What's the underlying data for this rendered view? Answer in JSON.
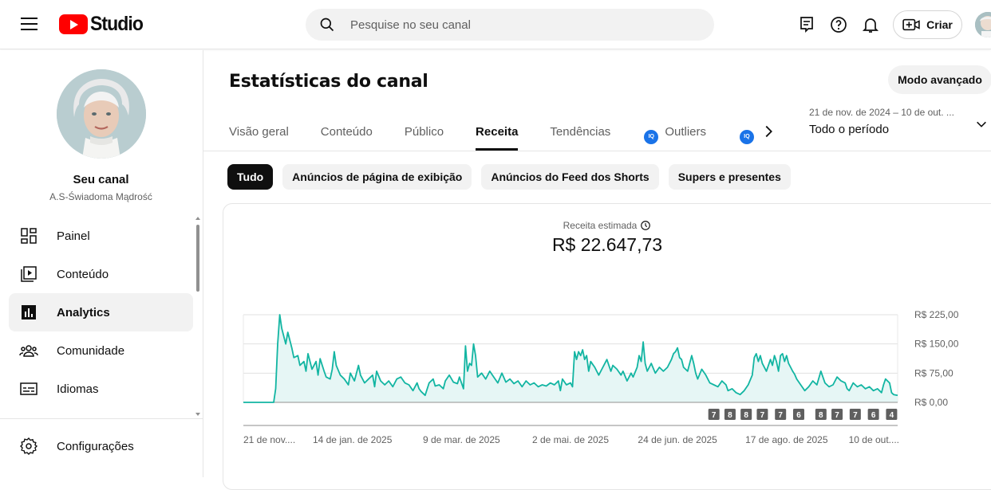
{
  "header": {
    "logo_text": "Studio",
    "search_placeholder": "Pesquise no seu canal",
    "create_label": "Criar"
  },
  "sidebar": {
    "channel_title": "Seu canal",
    "channel_handle": "A.S-Świadoma Mądrość",
    "items": [
      {
        "label": "Painel",
        "icon": "dashboard-icon"
      },
      {
        "label": "Conteúdo",
        "icon": "content-icon"
      },
      {
        "label": "Analytics",
        "icon": "analytics-icon",
        "active": true
      },
      {
        "label": "Comunidade",
        "icon": "community-icon"
      },
      {
        "label": "Idiomas",
        "icon": "subtitles-icon"
      }
    ],
    "settings_label": "Configurações"
  },
  "main": {
    "title": "Estatísticas do canal",
    "advanced_mode_label": "Modo avançado",
    "tabs": [
      {
        "label": "Visão geral"
      },
      {
        "label": "Conteúdo"
      },
      {
        "label": "Público"
      },
      {
        "label": "Receita",
        "active": true
      },
      {
        "label": "Tendências"
      },
      {
        "label": "Outliers",
        "badge": "IQ"
      },
      {
        "label": "",
        "badge": "IQ"
      }
    ],
    "date_range": {
      "range": "21 de nov. de 2024 – 10 de out. ...",
      "period": "Todo o período"
    },
    "chips": [
      {
        "label": "Tudo",
        "active": true
      },
      {
        "label": "Anúncios de página de exibição"
      },
      {
        "label": "Anúncios do Feed dos Shorts"
      },
      {
        "label": "Supers e presentes"
      }
    ],
    "metric": {
      "label": "Receita estimada",
      "value": "R$ 22.647,73"
    }
  },
  "chart_data": {
    "type": "area",
    "series_color": "#12b5a2",
    "fill_color": "#e6f6f5",
    "ylim": [
      0,
      225
    ],
    "y_ticks": [
      {
        "value": 0,
        "label": "R$ 0,00"
      },
      {
        "value": 75,
        "label": "R$ 75,00"
      },
      {
        "value": 150,
        "label": "R$ 150,00"
      },
      {
        "value": 225,
        "label": "R$ 225,00"
      }
    ],
    "x_tick_labels": [
      "21 de nov....",
      "14 de jan. de 2025",
      "9 de mar. de 2025",
      "2 de mai. de 2025",
      "24 de jun. de 2025",
      "17 de ago. de 2025",
      "10 de out...."
    ],
    "x_tick_days": [
      0,
      54,
      108,
      162,
      215,
      269,
      323
    ],
    "total_days": 324,
    "upload_markers": [
      {
        "day": 233,
        "count": "7"
      },
      {
        "day": 241,
        "count": "8"
      },
      {
        "day": 249,
        "count": "8"
      },
      {
        "day": 257,
        "count": "7"
      },
      {
        "day": 266,
        "count": "7"
      },
      {
        "day": 275,
        "count": "6"
      },
      {
        "day": 286,
        "count": "8"
      },
      {
        "day": 294,
        "count": "7"
      },
      {
        "day": 303,
        "count": "7"
      },
      {
        "day": 312,
        "count": "6"
      },
      {
        "day": 321,
        "count": "4"
      }
    ],
    "points": [
      [
        0,
        0
      ],
      [
        15,
        0
      ],
      [
        16,
        35
      ],
      [
        17,
        150
      ],
      [
        18,
        225
      ],
      [
        19,
        190
      ],
      [
        20,
        170
      ],
      [
        21,
        150
      ],
      [
        22,
        180
      ],
      [
        24,
        140
      ],
      [
        25,
        115
      ],
      [
        27,
        120
      ],
      [
        28,
        95
      ],
      [
        30,
        105
      ],
      [
        31,
        80
      ],
      [
        32,
        125
      ],
      [
        34,
        85
      ],
      [
        36,
        105
      ],
      [
        37,
        70
      ],
      [
        38,
        112
      ],
      [
        40,
        80
      ],
      [
        41,
        65
      ],
      [
        43,
        60
      ],
      [
        44,
        85
      ],
      [
        45,
        130
      ],
      [
        46,
        95
      ],
      [
        48,
        70
      ],
      [
        50,
        60
      ],
      [
        52,
        45
      ],
      [
        53,
        75
      ],
      [
        55,
        55
      ],
      [
        57,
        95
      ],
      [
        58,
        70
      ],
      [
        60,
        50
      ],
      [
        62,
        60
      ],
      [
        64,
        70
      ],
      [
        65,
        40
      ],
      [
        66,
        80
      ],
      [
        68,
        55
      ],
      [
        70,
        45
      ],
      [
        72,
        55
      ],
      [
        74,
        40
      ],
      [
        76,
        60
      ],
      [
        78,
        65
      ],
      [
        80,
        50
      ],
      [
        82,
        45
      ],
      [
        84,
        30
      ],
      [
        86,
        50
      ],
      [
        87,
        35
      ],
      [
        88,
        28
      ],
      [
        90,
        18
      ],
      [
        92,
        50
      ],
      [
        94,
        60
      ],
      [
        95,
        42
      ],
      [
        97,
        45
      ],
      [
        99,
        35
      ],
      [
        100,
        55
      ],
      [
        102,
        70
      ],
      [
        104,
        52
      ],
      [
        106,
        48
      ],
      [
        107,
        65
      ],
      [
        109,
        35
      ],
      [
        110,
        145
      ],
      [
        111,
        80
      ],
      [
        112,
        100
      ],
      [
        113,
        95
      ],
      [
        114,
        150
      ],
      [
        115,
        120
      ],
      [
        116,
        65
      ],
      [
        118,
        75
      ],
      [
        120,
        60
      ],
      [
        122,
        80
      ],
      [
        124,
        65
      ],
      [
        126,
        50
      ],
      [
        128,
        75
      ],
      [
        130,
        52
      ],
      [
        132,
        60
      ],
      [
        134,
        48
      ],
      [
        136,
        55
      ],
      [
        138,
        40
      ],
      [
        140,
        55
      ],
      [
        142,
        45
      ],
      [
        144,
        50
      ],
      [
        146,
        40
      ],
      [
        148,
        45
      ],
      [
        150,
        42
      ],
      [
        152,
        50
      ],
      [
        154,
        45
      ],
      [
        156,
        55
      ],
      [
        157,
        30
      ],
      [
        158,
        60
      ],
      [
        160,
        45
      ],
      [
        162,
        50
      ],
      [
        163,
        40
      ],
      [
        164,
        130
      ],
      [
        165,
        110
      ],
      [
        166,
        130
      ],
      [
        167,
        120
      ],
      [
        168,
        135
      ],
      [
        169,
        110
      ],
      [
        170,
        120
      ],
      [
        171,
        80
      ],
      [
        172,
        105
      ],
      [
        174,
        90
      ],
      [
        176,
        70
      ],
      [
        178,
        90
      ],
      [
        180,
        110
      ],
      [
        182,
        80
      ],
      [
        183,
        95
      ],
      [
        185,
        85
      ],
      [
        187,
        70
      ],
      [
        188,
        80
      ],
      [
        190,
        55
      ],
      [
        192,
        75
      ],
      [
        193,
        65
      ],
      [
        195,
        90
      ],
      [
        196,
        120
      ],
      [
        197,
        105
      ],
      [
        198,
        155
      ],
      [
        199,
        100
      ],
      [
        200,
        80
      ],
      [
        202,
        100
      ],
      [
        204,
        75
      ],
      [
        206,
        90
      ],
      [
        208,
        80
      ],
      [
        210,
        90
      ],
      [
        212,
        110
      ],
      [
        213,
        125
      ],
      [
        214,
        130
      ],
      [
        215,
        140
      ],
      [
        216,
        115
      ],
      [
        217,
        110
      ],
      [
        218,
        90
      ],
      [
        220,
        80
      ],
      [
        222,
        120
      ],
      [
        223,
        100
      ],
      [
        224,
        75
      ],
      [
        225,
        60
      ],
      [
        227,
        85
      ],
      [
        229,
        70
      ],
      [
        231,
        50
      ],
      [
        233,
        45
      ],
      [
        235,
        40
      ],
      [
        237,
        55
      ],
      [
        239,
        45
      ],
      [
        240,
        30
      ],
      [
        242,
        35
      ],
      [
        244,
        25
      ],
      [
        246,
        20
      ],
      [
        248,
        30
      ],
      [
        250,
        45
      ],
      [
        252,
        70
      ],
      [
        253,
        115
      ],
      [
        254,
        125
      ],
      [
        255,
        105
      ],
      [
        256,
        120
      ],
      [
        257,
        100
      ],
      [
        259,
        80
      ],
      [
        261,
        110
      ],
      [
        262,
        95
      ],
      [
        263,
        120
      ],
      [
        264,
        105
      ],
      [
        265,
        80
      ],
      [
        266,
        120
      ],
      [
        267,
        125
      ],
      [
        268,
        105
      ],
      [
        269,
        120
      ],
      [
        270,
        100
      ],
      [
        271,
        90
      ],
      [
        272,
        80
      ],
      [
        273,
        72
      ],
      [
        274,
        60
      ],
      [
        276,
        45
      ],
      [
        278,
        30
      ],
      [
        280,
        40
      ],
      [
        282,
        55
      ],
      [
        284,
        45
      ],
      [
        286,
        80
      ],
      [
        288,
        50
      ],
      [
        290,
        40
      ],
      [
        292,
        45
      ],
      [
        294,
        65
      ],
      [
        296,
        55
      ],
      [
        298,
        50
      ],
      [
        299,
        35
      ],
      [
        300,
        30
      ],
      [
        302,
        50
      ],
      [
        304,
        40
      ],
      [
        306,
        45
      ],
      [
        308,
        35
      ],
      [
        310,
        40
      ],
      [
        312,
        30
      ],
      [
        314,
        35
      ],
      [
        316,
        25
      ],
      [
        317,
        45
      ],
      [
        318,
        60
      ],
      [
        320,
        50
      ],
      [
        321,
        25
      ],
      [
        322,
        20
      ],
      [
        324,
        18
      ]
    ]
  }
}
